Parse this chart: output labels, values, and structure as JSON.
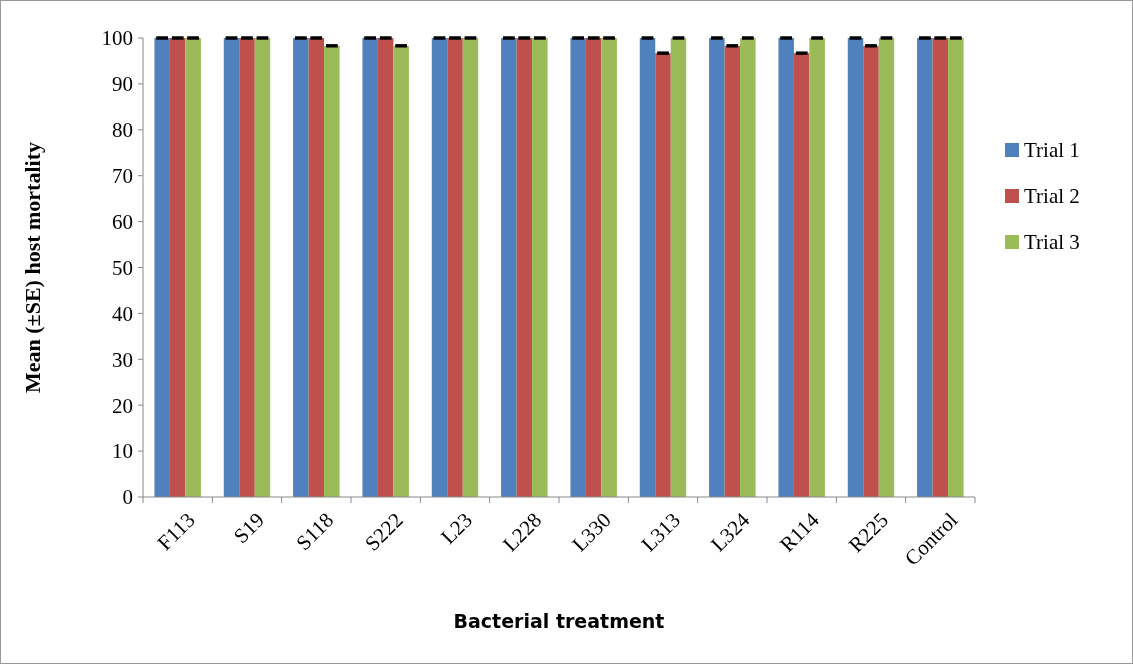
{
  "chart_data": {
    "type": "bar",
    "xlabel": "Bacterial treatment",
    "ylabel": "Mean (±SE) host mortality",
    "categories": [
      "F113",
      "S19",
      "S118",
      "S222",
      "L23",
      "L228",
      "L330",
      "L313",
      "L324",
      "R114",
      "R225",
      "Control"
    ],
    "series": [
      {
        "name": "Trial 1",
        "color": "#4f81bd",
        "values": [
          100,
          100,
          100,
          100,
          100,
          100,
          100,
          100,
          100,
          100,
          100,
          100
        ],
        "errors": [
          0,
          0,
          0,
          0,
          0,
          0,
          0,
          0,
          0,
          0,
          0,
          0
        ]
      },
      {
        "name": "Trial 2",
        "color": "#c0504d",
        "values": [
          100,
          100,
          100,
          100,
          100,
          100,
          100,
          96.7,
          98.3,
          96.7,
          98.3,
          100
        ],
        "errors": [
          0,
          0,
          0,
          0,
          0,
          0,
          0,
          0,
          0,
          0,
          0,
          0
        ]
      },
      {
        "name": "Trial 3",
        "color": "#9bbb59",
        "values": [
          100,
          100,
          98.3,
          98.3,
          100,
          100,
          100,
          100,
          100,
          100,
          100,
          100
        ],
        "errors": [
          0,
          0,
          0,
          0,
          0,
          0,
          0,
          0,
          0,
          0,
          0,
          0
        ]
      }
    ],
    "ylim": [
      0,
      100
    ],
    "yticks": [
      0,
      10,
      20,
      30,
      40,
      50,
      60,
      70,
      80,
      90,
      100
    ],
    "grid": false,
    "legend": "right"
  }
}
